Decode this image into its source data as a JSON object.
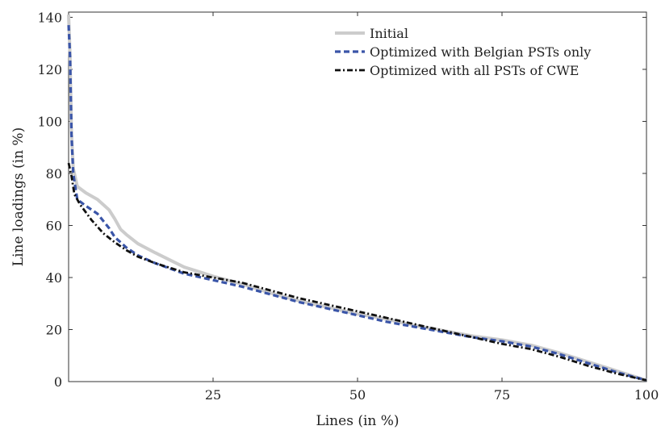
{
  "chart_data": {
    "type": "line",
    "title": "",
    "xlabel": "Lines (in %)",
    "ylabel": "Line loadings (in %)",
    "xlim": [
      0,
      100
    ],
    "ylim": [
      0,
      142
    ],
    "xticks": [
      25,
      50,
      75,
      100
    ],
    "yticks": [
      0,
      20,
      40,
      60,
      80,
      100,
      120,
      140
    ],
    "grid": false,
    "legend_position": "top-right",
    "series": [
      {
        "name": "Initial",
        "color": "#cccccc",
        "style": "solid",
        "points": [
          [
            0,
            141
          ],
          [
            0.25,
            125
          ],
          [
            0.5,
            95
          ],
          [
            0.8,
            82
          ],
          [
            1.5,
            75
          ],
          [
            3,
            72.5
          ],
          [
            5,
            70
          ],
          [
            7,
            66
          ],
          [
            8,
            62.5
          ],
          [
            9,
            58.5
          ],
          [
            10,
            56.5
          ],
          [
            12,
            53
          ],
          [
            15,
            49.5
          ],
          [
            20,
            44
          ],
          [
            25,
            40.5
          ],
          [
            30,
            37.5
          ],
          [
            35,
            34
          ],
          [
            40,
            31
          ],
          [
            45,
            28.5
          ],
          [
            50,
            26
          ],
          [
            55,
            24
          ],
          [
            60,
            21.5
          ],
          [
            65,
            19.5
          ],
          [
            70,
            17.5
          ],
          [
            75,
            16
          ],
          [
            80,
            14
          ],
          [
            85,
            11
          ],
          [
            90,
            7.5
          ],
          [
            95,
            4
          ],
          [
            100,
            0.5
          ]
        ]
      },
      {
        "name": "Optimized with Belgian PSTs only",
        "color": "#3a55a8",
        "style": "dashed",
        "points": [
          [
            0,
            137
          ],
          [
            0.25,
            125
          ],
          [
            0.5,
            95
          ],
          [
            0.8,
            80
          ],
          [
            1.5,
            70
          ],
          [
            3,
            67.5
          ],
          [
            5,
            64.5
          ],
          [
            7,
            59
          ],
          [
            8,
            55.5
          ],
          [
            10,
            51.5
          ],
          [
            12,
            48.5
          ],
          [
            15,
            45.5
          ],
          [
            20,
            41.5
          ],
          [
            25,
            39
          ],
          [
            30,
            36.5
          ],
          [
            35,
            33.5
          ],
          [
            40,
            30.5
          ],
          [
            45,
            28
          ],
          [
            50,
            25.5
          ],
          [
            55,
            23
          ],
          [
            60,
            21
          ],
          [
            65,
            19
          ],
          [
            70,
            17
          ],
          [
            75,
            15.5
          ],
          [
            80,
            13.5
          ],
          [
            85,
            10.5
          ],
          [
            90,
            7
          ],
          [
            95,
            3.5
          ],
          [
            100,
            0.5
          ]
        ]
      },
      {
        "name": "Optimized with all PSTs of CWE",
        "color": "#111111",
        "style": "dashdot",
        "points": [
          [
            0,
            84
          ],
          [
            0.5,
            79
          ],
          [
            1,
            72
          ],
          [
            2,
            68
          ],
          [
            4,
            62
          ],
          [
            6,
            57
          ],
          [
            8,
            53.5
          ],
          [
            10,
            50.5
          ],
          [
            12,
            48
          ],
          [
            15,
            45.5
          ],
          [
            20,
            42
          ],
          [
            25,
            40
          ],
          [
            30,
            38
          ],
          [
            35,
            35
          ],
          [
            40,
            32
          ],
          [
            45,
            29.5
          ],
          [
            50,
            27
          ],
          [
            55,
            24.5
          ],
          [
            60,
            22
          ],
          [
            65,
            19.5
          ],
          [
            70,
            17
          ],
          [
            75,
            14.5
          ],
          [
            80,
            12.5
          ],
          [
            85,
            9.5
          ],
          [
            90,
            6
          ],
          [
            95,
            3
          ],
          [
            100,
            0.5
          ]
        ]
      }
    ]
  }
}
